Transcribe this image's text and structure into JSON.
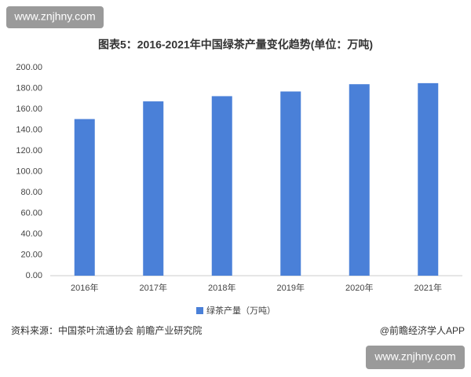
{
  "chart_data": {
    "type": "bar",
    "title": "图表5：2016-2021年中国绿茶产量变化趋势(单位：万吨)",
    "categories": [
      "2016年",
      "2017年",
      "2018年",
      "2019年",
      "2020年",
      "2021年"
    ],
    "series": [
      {
        "name": "绿茶产量（万吨）",
        "color": "#4a80d8",
        "values": [
          150.5,
          167.5,
          172.5,
          177,
          184,
          185
        ]
      }
    ],
    "ylim": [
      0,
      200
    ],
    "yticks": [
      {
        "value": 0,
        "label": "0.00"
      },
      {
        "value": 20,
        "label": "20.00"
      },
      {
        "value": 40,
        "label": "40.00"
      },
      {
        "value": 60,
        "label": "60.00"
      },
      {
        "value": 80,
        "label": "80.00"
      },
      {
        "value": 100,
        "label": "100.00"
      },
      {
        "value": 120,
        "label": "120.00"
      },
      {
        "value": 140,
        "label": "140.00"
      },
      {
        "value": 160,
        "label": "160.00"
      },
      {
        "value": 180,
        "label": "180.00"
      },
      {
        "value": 200,
        "label": "200.00"
      }
    ],
    "grid": false,
    "source": "资料来源：中国茶叶流通协会 前瞻产业研究院",
    "credit": "@前瞻经济学人APP",
    "watermarks": [
      "www.znjhny.com",
      "www.znjhny.com"
    ]
  }
}
